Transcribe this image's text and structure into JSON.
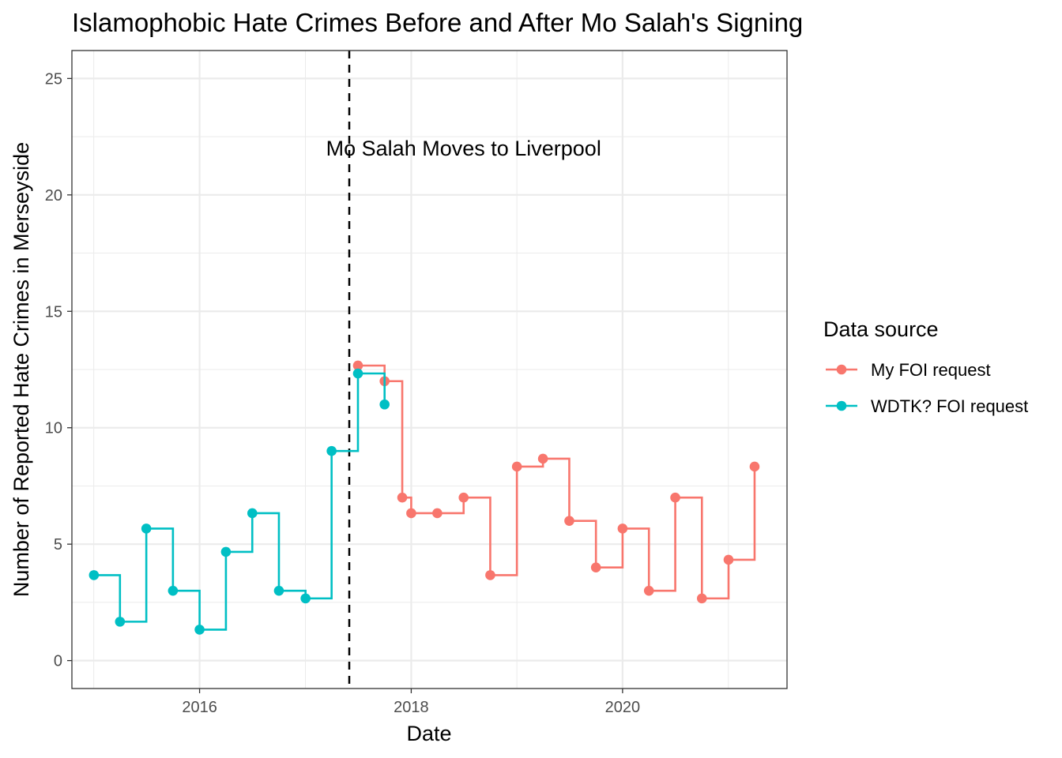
{
  "chart_data": {
    "type": "line",
    "title": "Islamophobic Hate Crimes Before and After Mo Salah's Signing",
    "xlabel": "Date",
    "ylabel": "Number of Reported Hate Crimes in Merseyside",
    "xlim": [
      "2014-10-17",
      "2021-07-22"
    ],
    "ylim": [
      -1.2,
      26.2
    ],
    "x_ticks": [
      "2016-01-01",
      "2018-01-01",
      "2020-01-01"
    ],
    "x_tick_labels": [
      "2016",
      "2018",
      "2020"
    ],
    "y_ticks": [
      0,
      5,
      10,
      15,
      20,
      25
    ],
    "y_tick_labels": [
      "0",
      "5",
      "10",
      "15",
      "20",
      "25"
    ],
    "grid": true,
    "step": "hv",
    "markers": true,
    "legend": {
      "title": "Data source",
      "position": "right"
    },
    "series": [
      {
        "name": "My FOI request",
        "color": "#F8766D",
        "x": [
          "2017-07-01",
          "2017-10-01",
          "2017-12-01",
          "2018-01-01",
          "2018-04-01",
          "2018-07-01",
          "2018-10-01",
          "2019-01-01",
          "2019-04-01",
          "2019-07-01",
          "2019-10-01",
          "2020-01-01",
          "2020-04-01",
          "2020-07-01",
          "2020-10-01",
          "2021-01-01",
          "2021-04-01"
        ],
        "y": [
          12.67,
          12.0,
          7.0,
          6.33,
          6.33,
          7.0,
          3.67,
          8.33,
          8.67,
          6.0,
          4.0,
          5.67,
          3.0,
          7.0,
          2.67,
          4.33,
          8.33
        ]
      },
      {
        "name": "WDTK? FOI request",
        "color": "#00BFC4",
        "x": [
          "2015-01-01",
          "2015-04-01",
          "2015-07-01",
          "2015-10-01",
          "2016-01-01",
          "2016-04-01",
          "2016-07-01",
          "2016-10-01",
          "2017-01-01",
          "2017-04-01",
          "2017-07-01",
          "2017-10-01"
        ],
        "y": [
          3.67,
          1.67,
          5.67,
          3.0,
          1.33,
          4.67,
          6.33,
          3.0,
          2.67,
          9.0,
          12.33,
          11.0
        ]
      }
    ],
    "annotations": [
      {
        "type": "vline",
        "x": "2017-06-01",
        "style": "dashed",
        "color": "#000000"
      },
      {
        "type": "text",
        "text": "Mo Salah Moves to Liverpool",
        "x": "2018-07-01",
        "y": 22
      }
    ]
  }
}
